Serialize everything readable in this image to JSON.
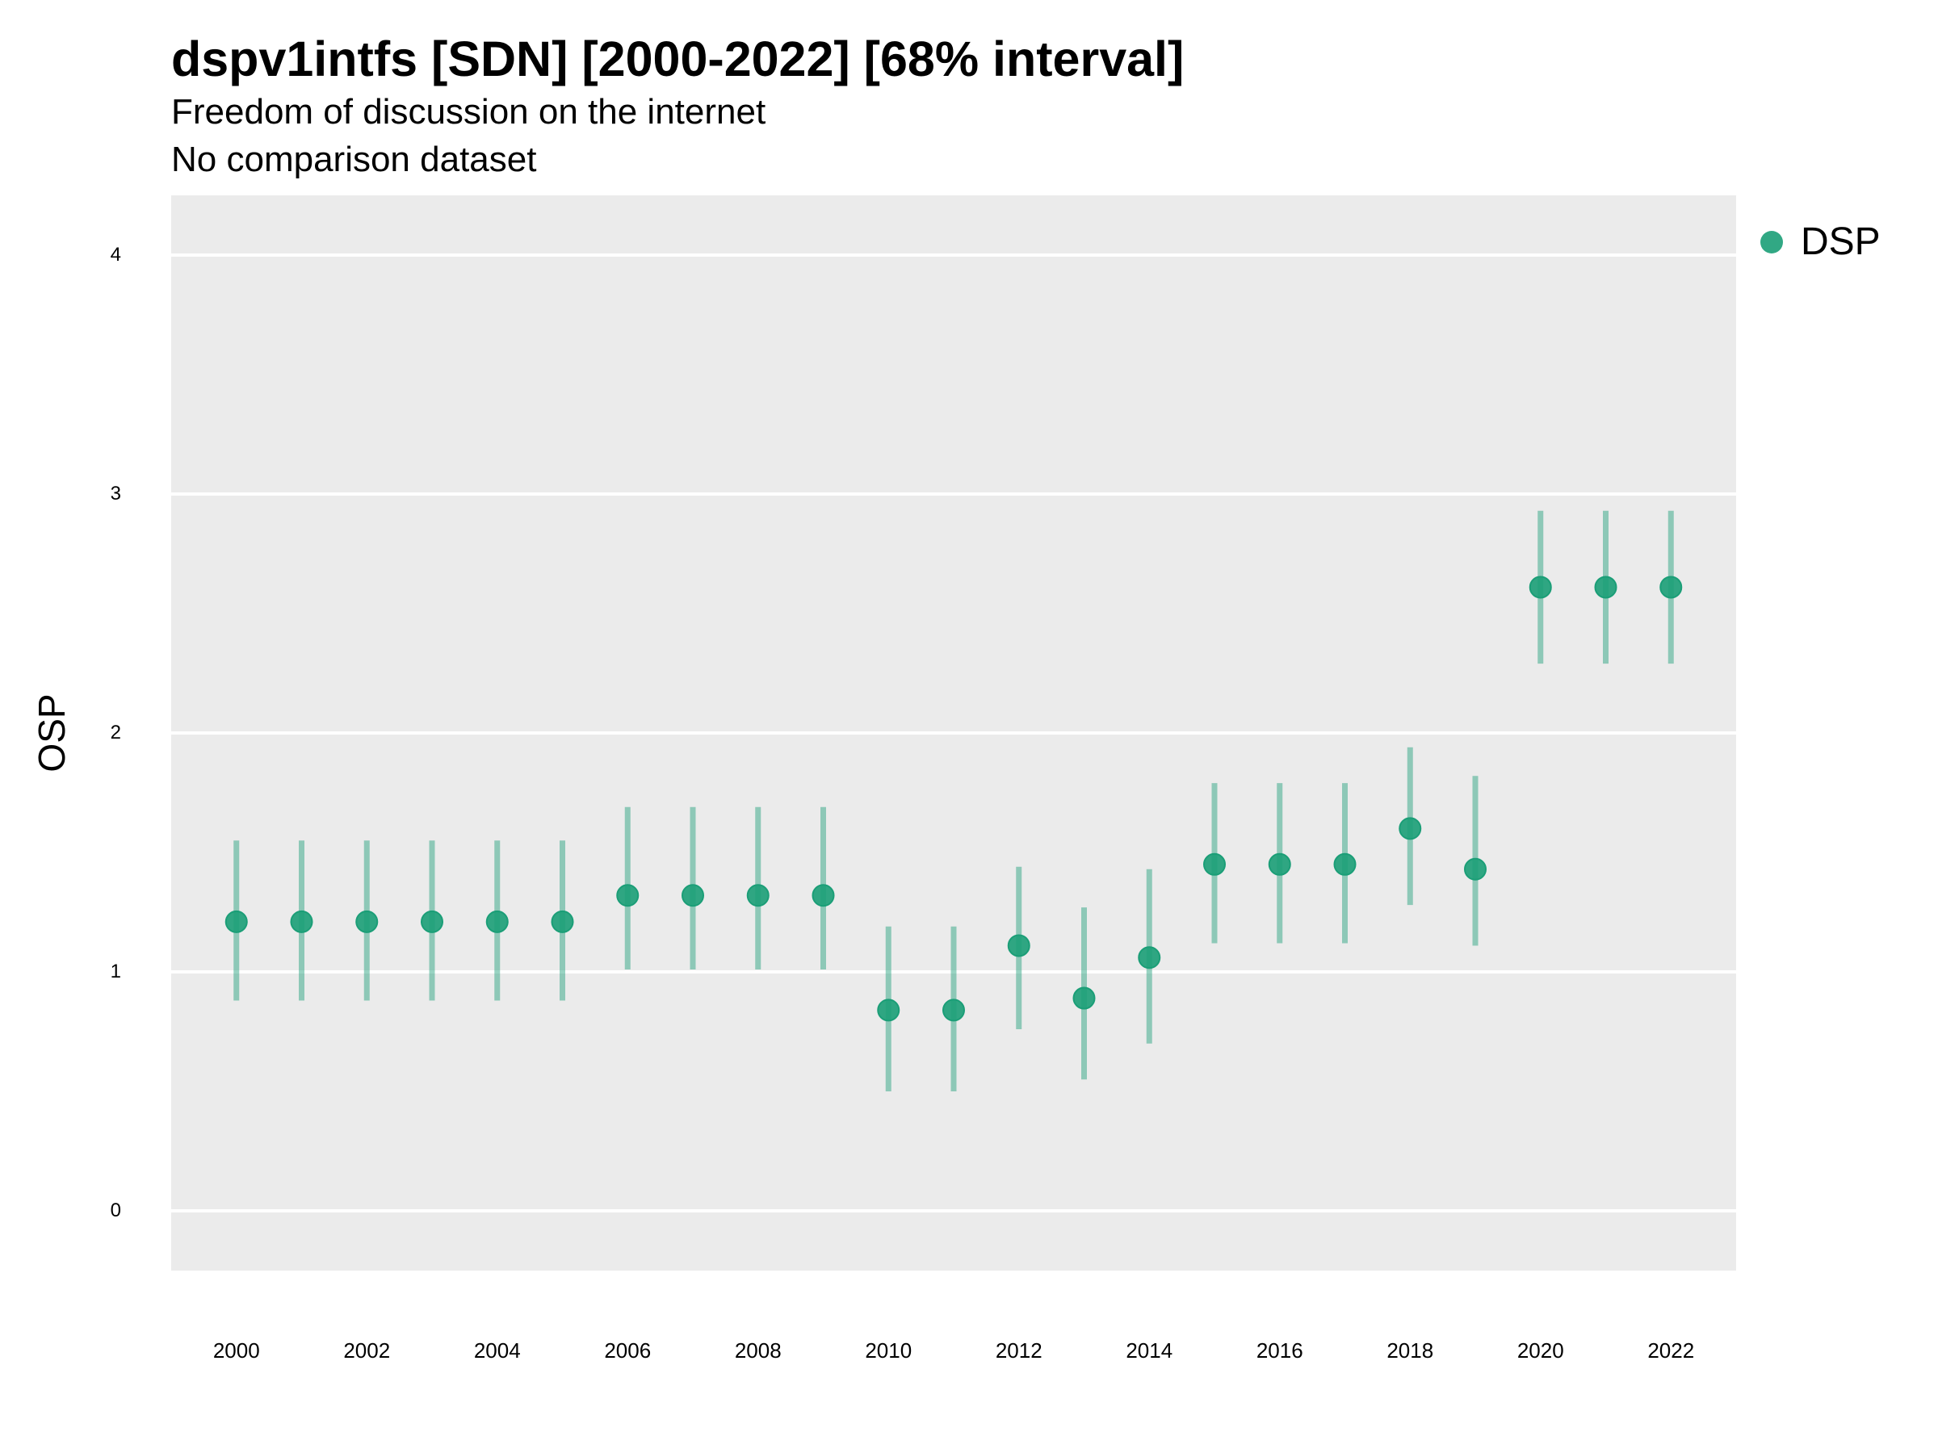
{
  "title": "dspv1intfs [SDN] [2000-2022] [68% interval]",
  "subtitle": "Freedom of discussion on the internet",
  "caption": "No comparison dataset",
  "colors": {
    "series": "#1b9e77",
    "panel": "#ebebeb",
    "grid": "#ffffff"
  },
  "chart_data": {
    "type": "scatter",
    "ylabel": "OSP",
    "xlabel": "",
    "ylim": [
      -0.25,
      4.25
    ],
    "xlim": [
      1999,
      2023
    ],
    "x_ticks": [
      2000,
      2002,
      2004,
      2006,
      2008,
      2010,
      2012,
      2014,
      2016,
      2018,
      2020,
      2022
    ],
    "y_ticks": [
      0,
      1,
      2,
      3,
      4
    ],
    "grid": true,
    "legend_position": "right",
    "series": [
      {
        "name": "DSP",
        "x": [
          2000,
          2001,
          2002,
          2003,
          2004,
          2005,
          2006,
          2007,
          2008,
          2009,
          2010,
          2011,
          2012,
          2013,
          2014,
          2015,
          2016,
          2017,
          2018,
          2019,
          2020,
          2021,
          2022
        ],
        "y": [
          1.21,
          1.21,
          1.21,
          1.21,
          1.21,
          1.21,
          1.32,
          1.32,
          1.32,
          1.32,
          0.84,
          0.84,
          1.11,
          0.89,
          1.06,
          1.45,
          1.45,
          1.45,
          1.6,
          1.43,
          2.61,
          2.61,
          2.61
        ],
        "lower": [
          0.88,
          0.88,
          0.88,
          0.88,
          0.88,
          0.88,
          1.01,
          1.01,
          1.01,
          1.01,
          0.5,
          0.5,
          0.76,
          0.55,
          0.7,
          1.12,
          1.12,
          1.12,
          1.28,
          1.11,
          2.29,
          2.29,
          2.29
        ],
        "upper": [
          1.55,
          1.55,
          1.55,
          1.55,
          1.55,
          1.55,
          1.69,
          1.69,
          1.69,
          1.69,
          1.19,
          1.19,
          1.44,
          1.27,
          1.43,
          1.79,
          1.79,
          1.79,
          1.94,
          1.82,
          2.93,
          2.93,
          2.93
        ]
      }
    ]
  }
}
